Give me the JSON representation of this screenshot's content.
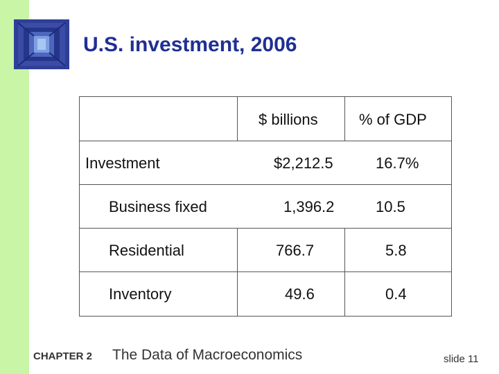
{
  "slide": {
    "title": "U.S. investment, 2006",
    "footer": {
      "chapter": "CHAPTER 2",
      "subject": "The Data of Macroeconomics",
      "slide_number": "slide 11"
    }
  },
  "table": {
    "headers": [
      "",
      "$ billions",
      "% of GDP"
    ],
    "rows": [
      {
        "label": "Investment",
        "billions": "$2,212.5",
        "gdp": "16.7%"
      },
      {
        "label": "Business fixed",
        "billions": "1,396.2",
        "gdp": "10.5"
      },
      {
        "label": "Residential",
        "billions": "766.7",
        "gdp": "5.8"
      },
      {
        "label": "Inventory",
        "billions": "49.6",
        "gdp": "0.4"
      }
    ]
  },
  "colors": {
    "title": "#1f2f93",
    "left_bar": "#c9f5a6",
    "logo_blue": "#2f3f98"
  }
}
